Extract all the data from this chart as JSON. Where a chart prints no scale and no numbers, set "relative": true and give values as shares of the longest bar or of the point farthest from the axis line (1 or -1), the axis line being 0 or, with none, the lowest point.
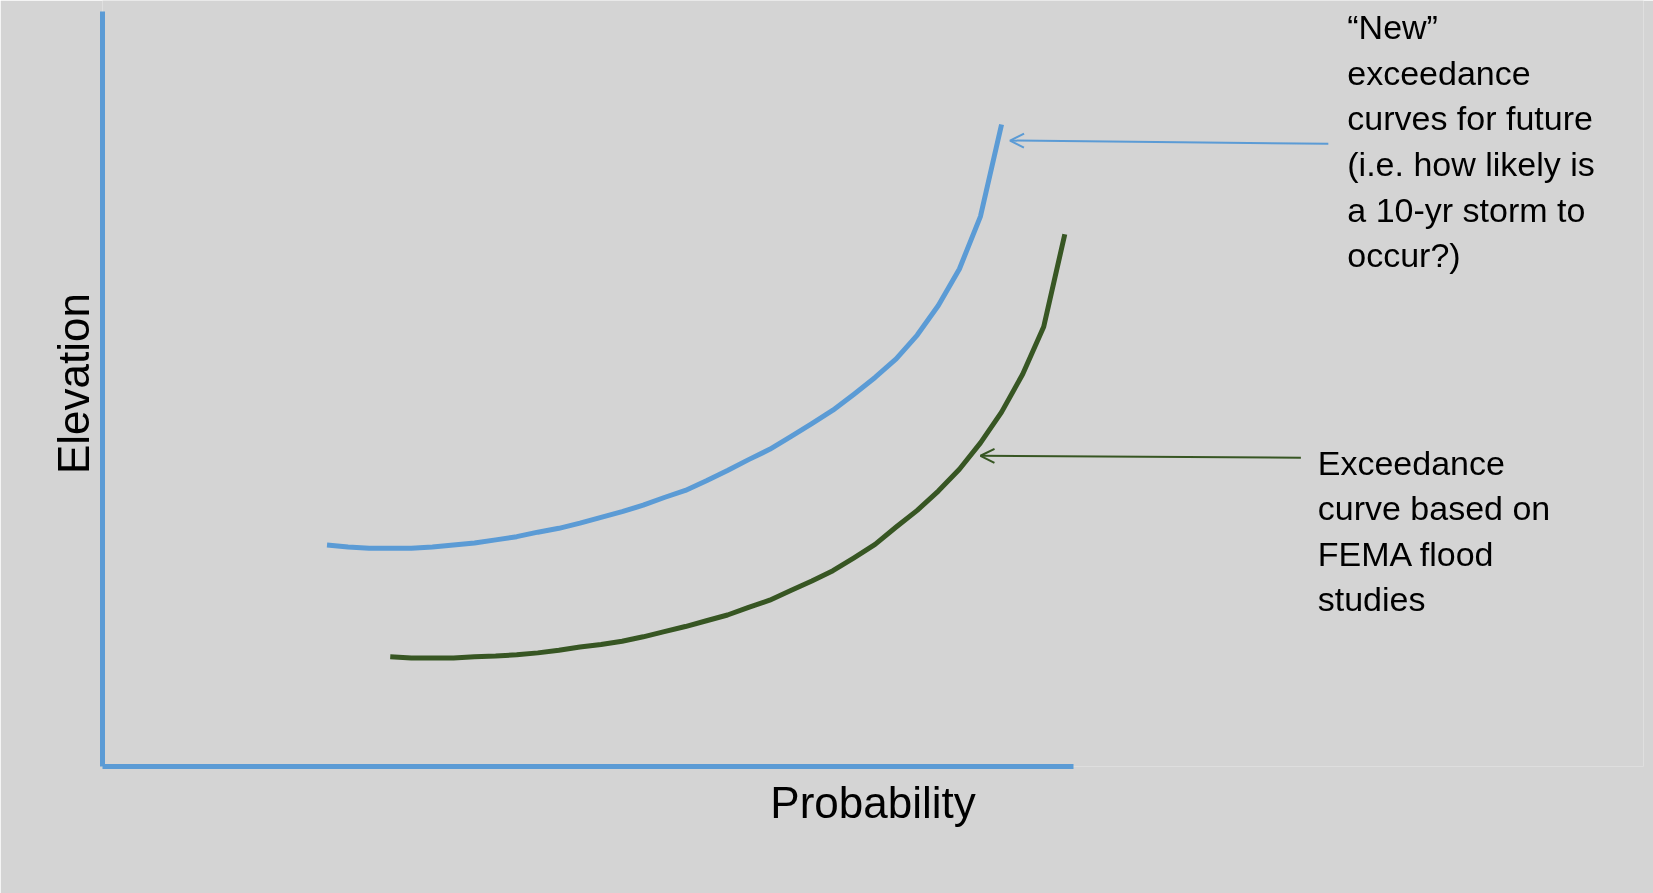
{
  "chart_data": {
    "type": "line",
    "relative": true,
    "xlabel": "Probability",
    "ylabel": "Elevation",
    "grid": false,
    "line_style": "solid",
    "marker": "none",
    "categories": [
      null,
      null,
      null,
      null,
      null,
      null,
      null,
      null,
      null,
      null,
      null,
      null,
      null,
      null,
      null,
      null,
      null,
      null,
      null,
      null,
      null,
      null,
      null,
      null,
      null,
      null,
      null,
      null,
      null,
      null,
      null,
      null,
      null,
      null,
      null,
      null
    ],
    "series": [
      {
        "color": "#5b9bd5",
        "values": [
          0.345,
          0.342,
          0.34,
          0.34,
          0.34,
          0.342,
          0.345,
          0.348,
          0.353,
          0.358,
          0.365,
          0.371,
          0.379,
          0.388,
          0.397,
          0.407,
          0.419,
          0.43,
          0.445,
          0.461,
          0.478,
          0.494,
          0.514,
          0.534,
          0.555,
          0.58,
          0.606,
          0.635,
          0.672,
          0.718,
          0.775,
          0.857,
          1,
          null,
          null,
          null
        ]
      },
      {
        "color": "#375623",
        "values": [
          null,
          null,
          null,
          0.171,
          0.169,
          0.169,
          0.169,
          0.171,
          0.172,
          0.174,
          0.177,
          0.181,
          0.186,
          0.19,
          0.195,
          0.202,
          0.21,
          0.218,
          0.227,
          0.236,
          0.248,
          0.259,
          0.274,
          0.289,
          0.305,
          0.325,
          0.346,
          0.373,
          0.399,
          0.429,
          0.463,
          0.504,
          0.552,
          0.611,
          0.685,
          0.829
        ]
      }
    ],
    "annotations": [
      "“New”\nexceedance\ncurves for future\n(i.e. how likely is\na 10-yr storm to\noccur?)",
      "Exceedance\ncurve based on\nFEMA flood\nstudies"
    ]
  }
}
